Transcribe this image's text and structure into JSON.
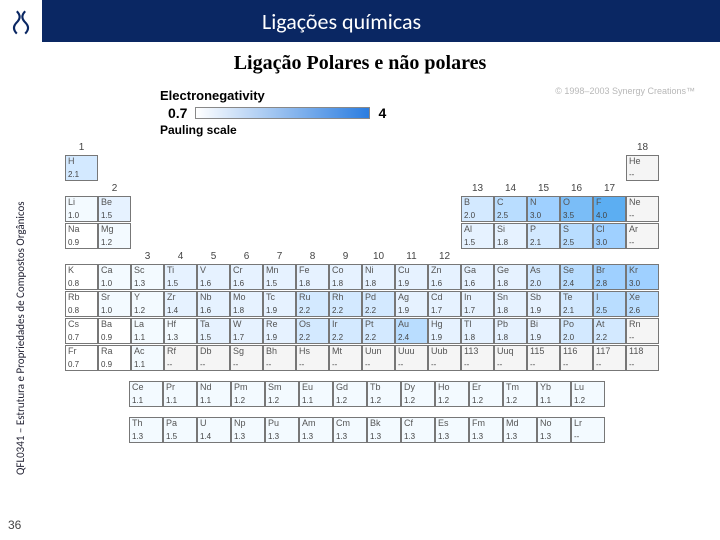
{
  "header": {
    "title": "Ligações químicas"
  },
  "sidebar": {
    "text": "QFL0341 – Estrutura e Propriedades de Compostos Orgânicos"
  },
  "pageNumber": "36",
  "subtitle": "Ligação Polares e não polares",
  "copyright": "© 1998–2003 Synergy Creations™",
  "enLabel": "Electronegativity",
  "paulingLabel": "Pauling scale",
  "scale": {
    "min": "0.7",
    "max": "4"
  },
  "groups": [
    "1",
    "2",
    "3",
    "4",
    "5",
    "6",
    "7",
    "8",
    "9",
    "10",
    "11",
    "12",
    "13",
    "14",
    "15",
    "16",
    "17",
    "18"
  ],
  "colors": {
    "white": "#ffffff",
    "c10": "#f3faff",
    "c15": "#e6f2ff",
    "c20": "#d3e9ff",
    "c25": "#b9ddff",
    "c30": "#9fd0ff",
    "c32": "#8cc7fa",
    "c35": "#7abdf7",
    "c40": "#5caef2",
    "none": "#f5f5f5"
  },
  "table": [
    [
      {
        "s": "H",
        "e": "2.1",
        "c": "c20"
      },
      null,
      null,
      null,
      null,
      null,
      null,
      null,
      null,
      null,
      null,
      null,
      null,
      null,
      null,
      null,
      null,
      {
        "s": "He",
        "e": "--",
        "c": "none"
      }
    ],
    [
      {
        "s": "Li",
        "e": "1.0",
        "c": "c10"
      },
      {
        "s": "Be",
        "e": "1.5",
        "c": "c15"
      },
      null,
      null,
      null,
      null,
      null,
      null,
      null,
      null,
      null,
      null,
      {
        "s": "B",
        "e": "2.0",
        "c": "c20"
      },
      {
        "s": "C",
        "e": "2.5",
        "c": "c25"
      },
      {
        "s": "N",
        "e": "3.0",
        "c": "c30"
      },
      {
        "s": "O",
        "e": "3.5",
        "c": "c35"
      },
      {
        "s": "F",
        "e": "4.0",
        "c": "c40"
      },
      {
        "s": "Ne",
        "e": "--",
        "c": "none"
      }
    ],
    [
      {
        "s": "Na",
        "e": "0.9",
        "c": "white"
      },
      {
        "s": "Mg",
        "e": "1.2",
        "c": "c10"
      },
      null,
      null,
      null,
      null,
      null,
      null,
      null,
      null,
      null,
      null,
      {
        "s": "Al",
        "e": "1.5",
        "c": "c15"
      },
      {
        "s": "Si",
        "e": "1.8",
        "c": "c15"
      },
      {
        "s": "P",
        "e": "2.1",
        "c": "c20"
      },
      {
        "s": "S",
        "e": "2.5",
        "c": "c25"
      },
      {
        "s": "Cl",
        "e": "3.0",
        "c": "c30"
      },
      {
        "s": "Ar",
        "e": "--",
        "c": "none"
      }
    ],
    [
      {
        "s": "K",
        "e": "0.8",
        "c": "white"
      },
      {
        "s": "Ca",
        "e": "1.0",
        "c": "c10"
      },
      {
        "s": "Sc",
        "e": "1.3",
        "c": "c10"
      },
      {
        "s": "Ti",
        "e": "1.5",
        "c": "c15"
      },
      {
        "s": "V",
        "e": "1.6",
        "c": "c15"
      },
      {
        "s": "Cr",
        "e": "1.6",
        "c": "c15"
      },
      {
        "s": "Mn",
        "e": "1.5",
        "c": "c15"
      },
      {
        "s": "Fe",
        "e": "1.8",
        "c": "c15"
      },
      {
        "s": "Co",
        "e": "1.8",
        "c": "c15"
      },
      {
        "s": "Ni",
        "e": "1.8",
        "c": "c15"
      },
      {
        "s": "Cu",
        "e": "1.9",
        "c": "c15"
      },
      {
        "s": "Zn",
        "e": "1.6",
        "c": "c15"
      },
      {
        "s": "Ga",
        "e": "1.6",
        "c": "c15"
      },
      {
        "s": "Ge",
        "e": "1.8",
        "c": "c15"
      },
      {
        "s": "As",
        "e": "2.0",
        "c": "c20"
      },
      {
        "s": "Se",
        "e": "2.4",
        "c": "c25"
      },
      {
        "s": "Br",
        "e": "2.8",
        "c": "c30"
      },
      {
        "s": "Kr",
        "e": "3.0",
        "c": "c30"
      }
    ],
    [
      {
        "s": "Rb",
        "e": "0.8",
        "c": "white"
      },
      {
        "s": "Sr",
        "e": "1.0",
        "c": "c10"
      },
      {
        "s": "Y",
        "e": "1.2",
        "c": "c10"
      },
      {
        "s": "Zr",
        "e": "1.4",
        "c": "c15"
      },
      {
        "s": "Nb",
        "e": "1.6",
        "c": "c15"
      },
      {
        "s": "Mo",
        "e": "1.8",
        "c": "c15"
      },
      {
        "s": "Tc",
        "e": "1.9",
        "c": "c15"
      },
      {
        "s": "Ru",
        "e": "2.2",
        "c": "c20"
      },
      {
        "s": "Rh",
        "e": "2.2",
        "c": "c20"
      },
      {
        "s": "Pd",
        "e": "2.2",
        "c": "c20"
      },
      {
        "s": "Ag",
        "e": "1.9",
        "c": "c15"
      },
      {
        "s": "Cd",
        "e": "1.7",
        "c": "c15"
      },
      {
        "s": "In",
        "e": "1.7",
        "c": "c15"
      },
      {
        "s": "Sn",
        "e": "1.8",
        "c": "c15"
      },
      {
        "s": "Sb",
        "e": "1.9",
        "c": "c15"
      },
      {
        "s": "Te",
        "e": "2.1",
        "c": "c20"
      },
      {
        "s": "I",
        "e": "2.5",
        "c": "c25"
      },
      {
        "s": "Xe",
        "e": "2.6",
        "c": "c25"
      }
    ],
    [
      {
        "s": "Cs",
        "e": "0.7",
        "c": "white"
      },
      {
        "s": "Ba",
        "e": "0.9",
        "c": "white"
      },
      {
        "s": "La",
        "e": "1.1",
        "c": "c10"
      },
      {
        "s": "Hf",
        "e": "1.3",
        "c": "c10"
      },
      {
        "s": "Ta",
        "e": "1.5",
        "c": "c15"
      },
      {
        "s": "W",
        "e": "1.7",
        "c": "c15"
      },
      {
        "s": "Re",
        "e": "1.9",
        "c": "c15"
      },
      {
        "s": "Os",
        "e": "2.2",
        "c": "c20"
      },
      {
        "s": "Ir",
        "e": "2.2",
        "c": "c20"
      },
      {
        "s": "Pt",
        "e": "2.2",
        "c": "c20"
      },
      {
        "s": "Au",
        "e": "2.4",
        "c": "c25"
      },
      {
        "s": "Hg",
        "e": "1.9",
        "c": "c15"
      },
      {
        "s": "Tl",
        "e": "1.8",
        "c": "c15"
      },
      {
        "s": "Pb",
        "e": "1.8",
        "c": "c15"
      },
      {
        "s": "Bi",
        "e": "1.9",
        "c": "c15"
      },
      {
        "s": "Po",
        "e": "2.0",
        "c": "c20"
      },
      {
        "s": "At",
        "e": "2.2",
        "c": "c20"
      },
      {
        "s": "Rn",
        "e": "--",
        "c": "none"
      }
    ],
    [
      {
        "s": "Fr",
        "e": "0.7",
        "c": "white"
      },
      {
        "s": "Ra",
        "e": "0.9",
        "c": "white"
      },
      {
        "s": "Ac",
        "e": "1.1",
        "c": "c10"
      },
      {
        "s": "Rf",
        "e": "--",
        "c": "none"
      },
      {
        "s": "Db",
        "e": "--",
        "c": "none"
      },
      {
        "s": "Sg",
        "e": "--",
        "c": "none"
      },
      {
        "s": "Bh",
        "e": "--",
        "c": "none"
      },
      {
        "s": "Hs",
        "e": "--",
        "c": "none"
      },
      {
        "s": "Mt",
        "e": "--",
        "c": "none"
      },
      {
        "s": "Uun",
        "e": "--",
        "c": "none"
      },
      {
        "s": "Uuu",
        "e": "--",
        "c": "none"
      },
      {
        "s": "Uub",
        "e": "--",
        "c": "none"
      },
      {
        "s": "113",
        "e": "--",
        "c": "none"
      },
      {
        "s": "Uuq",
        "e": "--",
        "c": "none"
      },
      {
        "s": "115",
        "e": "--",
        "c": "none"
      },
      {
        "s": "116",
        "e": "--",
        "c": "none"
      },
      {
        "s": "117",
        "e": "--",
        "c": "none"
      },
      {
        "s": "118",
        "e": "--",
        "c": "none"
      }
    ]
  ],
  "lanthanides": [
    [
      {
        "s": "Ce",
        "e": "1.1"
      },
      {
        "s": "Pr",
        "e": "1.1"
      },
      {
        "s": "Nd",
        "e": "1.1"
      },
      {
        "s": "Pm",
        "e": "1.2"
      },
      {
        "s": "Sm",
        "e": "1.2"
      },
      {
        "s": "Eu",
        "e": "1.1"
      },
      {
        "s": "Gd",
        "e": "1.2"
      },
      {
        "s": "Tb",
        "e": "1.2"
      },
      {
        "s": "Dy",
        "e": "1.2"
      },
      {
        "s": "Ho",
        "e": "1.2"
      },
      {
        "s": "Er",
        "e": "1.2"
      },
      {
        "s": "Tm",
        "e": "1.2"
      },
      {
        "s": "Yb",
        "e": "1.1"
      },
      {
        "s": "Lu",
        "e": "1.2"
      }
    ],
    [
      {
        "s": "Th",
        "e": "1.3"
      },
      {
        "s": "Pa",
        "e": "1.5"
      },
      {
        "s": "U",
        "e": "1.4"
      },
      {
        "s": "Np",
        "e": "1.3"
      },
      {
        "s": "Pu",
        "e": "1.3"
      },
      {
        "s": "Am",
        "e": "1.3"
      },
      {
        "s": "Cm",
        "e": "1.3"
      },
      {
        "s": "Bk",
        "e": "1.3"
      },
      {
        "s": "Cf",
        "e": "1.3"
      },
      {
        "s": "Es",
        "e": "1.3"
      },
      {
        "s": "Fm",
        "e": "1.3"
      },
      {
        "s": "Md",
        "e": "1.3"
      },
      {
        "s": "No",
        "e": "1.3"
      },
      {
        "s": "Lr",
        "e": "--"
      }
    ]
  ]
}
